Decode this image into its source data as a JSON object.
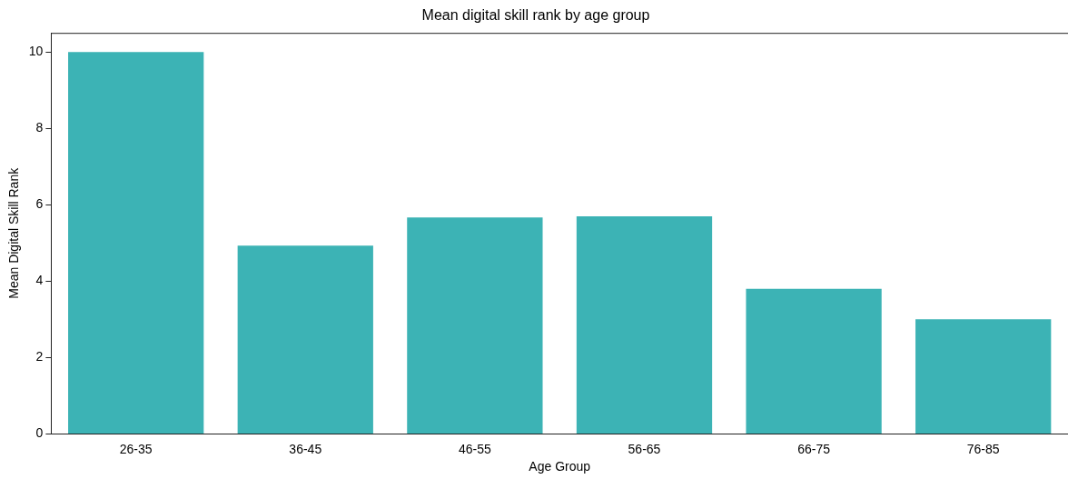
{
  "chart_data": {
    "type": "bar",
    "title": "Mean digital skill rank by age group",
    "xlabel": "Age Group",
    "ylabel": "Mean Digital Skill Rank",
    "categories": [
      "26-35",
      "36-45",
      "46-55",
      "56-65",
      "66-75",
      "76-85"
    ],
    "values": [
      10,
      4.93,
      5.67,
      5.7,
      3.8,
      3.0
    ],
    "color": "#3cb3b5",
    "ylim": [
      0,
      10.5
    ],
    "yticks": [
      0,
      2,
      4,
      6,
      8,
      10
    ],
    "grid": false,
    "legend": false
  }
}
